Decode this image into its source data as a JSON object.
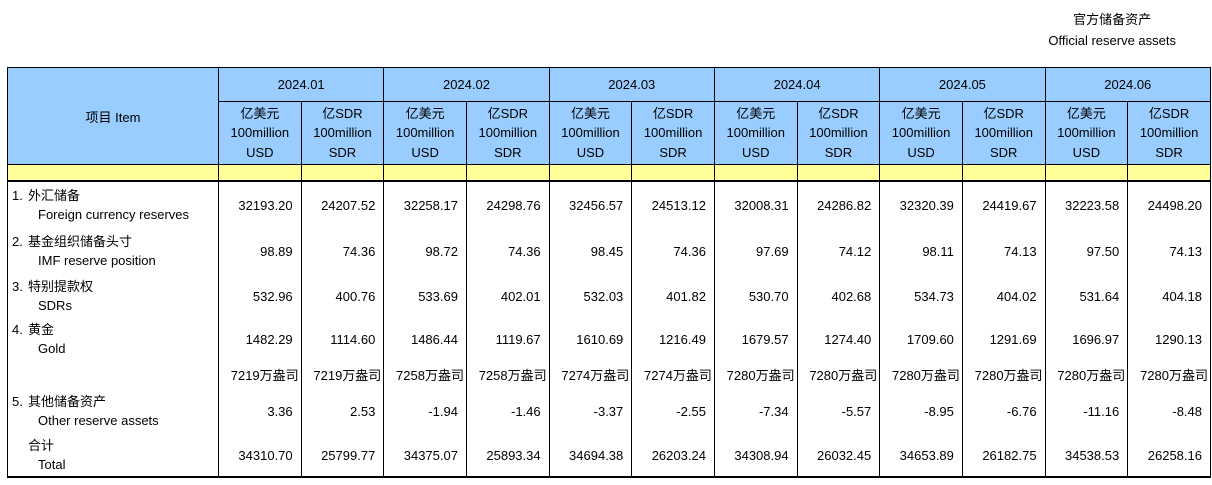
{
  "colors": {
    "header_blue": "#99CCFF",
    "band_yellow": "#FFFF99",
    "border": "#000000",
    "background": "#FFFFFF"
  },
  "chart_data": {
    "type": "table",
    "title_cn": "官方储备资产",
    "title_en": "Official reserve assets",
    "item_header": "项目  Item",
    "months": [
      "2024.01",
      "2024.02",
      "2024.03",
      "2024.04",
      "2024.05",
      "2024.06"
    ],
    "unit_usd_lines": [
      "亿美元",
      "100million",
      "USD"
    ],
    "unit_sdr_lines": [
      "亿SDR",
      "100million",
      "SDR"
    ],
    "rows": [
      {
        "kind": "normal",
        "no": "1.",
        "cn": "外汇储备",
        "en": "Foreign currency reserves",
        "values": [
          "32193.20",
          "24207.52",
          "32258.17",
          "24298.76",
          "32456.57",
          "24513.12",
          "32008.31",
          "24286.82",
          "32320.39",
          "24419.67",
          "32223.58",
          "24498.20"
        ]
      },
      {
        "kind": "normal",
        "no": "2.",
        "cn": "基金组织储备头寸",
        "en": "IMF reserve position",
        "values": [
          "98.89",
          "74.36",
          "98.72",
          "74.36",
          "98.45",
          "74.36",
          "97.69",
          "74.12",
          "98.11",
          "74.13",
          "97.50",
          "74.13"
        ]
      },
      {
        "kind": "normal",
        "no": "3.",
        "cn": "特别提款权",
        "en": "SDRs",
        "values": [
          "532.96",
          "400.76",
          "533.69",
          "402.01",
          "532.03",
          "401.82",
          "530.70",
          "402.68",
          "534.73",
          "404.02",
          "531.64",
          "404.18"
        ]
      },
      {
        "kind": "normal",
        "no": "4.",
        "cn": "黄金",
        "en": "Gold",
        "values": [
          "1482.29",
          "1114.60",
          "1486.44",
          "1119.67",
          "1610.69",
          "1216.49",
          "1679.57",
          "1274.40",
          "1709.60",
          "1291.69",
          "1696.97",
          "1290.13"
        ]
      },
      {
        "kind": "ounces",
        "no": "",
        "cn": "",
        "en": "",
        "values": [
          "7219万盎司",
          "7219万盎司",
          "7258万盎司",
          "7258万盎司",
          "7274万盎司",
          "7274万盎司",
          "7280万盎司",
          "7280万盎司",
          "7280万盎司",
          "7280万盎司",
          "7280万盎司",
          "7280万盎司"
        ]
      },
      {
        "kind": "normal",
        "no": "5.",
        "cn": "其他储备资产",
        "en": "Other reserve assets",
        "values": [
          "3.36",
          "2.53",
          "-1.94",
          "-1.46",
          "-3.37",
          "-2.55",
          "-7.34",
          "-5.57",
          "-8.95",
          "-6.76",
          "-11.16",
          "-8.48"
        ]
      },
      {
        "kind": "total",
        "no": "",
        "cn": "合计",
        "en": "Total",
        "values": [
          "34310.70",
          "25799.77",
          "34375.07",
          "25893.34",
          "34694.38",
          "26203.24",
          "34308.94",
          "26032.45",
          "34653.89",
          "26182.75",
          "34538.53",
          "26258.16"
        ]
      }
    ]
  }
}
